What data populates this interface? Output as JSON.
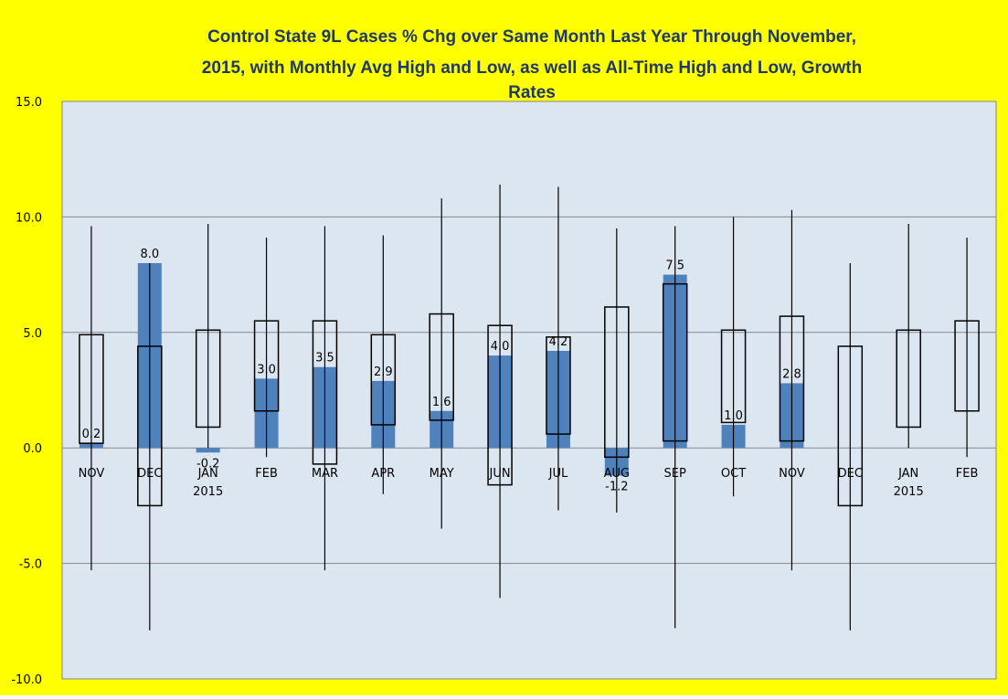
{
  "colors": {
    "outer_background": "#ffff00",
    "plot_background": "#dce6f1",
    "bar_fill": "#4f81bd",
    "box_stroke": "#000000",
    "whisker_stroke": "#000000",
    "gridline": "#868686",
    "title": "#1f3864"
  },
  "chart_data": {
    "type": "bar",
    "title_lines": [
      "Control State 9L Cases % Chg over Same Month Last Year Through November,",
      "2015, with Monthly Avg High and Low, as well as All-Time High and Low,  Growth",
      "Rates"
    ],
    "xlabel": "",
    "ylabel": "",
    "ylim": [
      -10,
      15
    ],
    "yticks": [
      "-10.0",
      "-5.0",
      "0.0",
      "5.0",
      "10.0",
      "15.0"
    ],
    "ytick_values": [
      -10,
      -5,
      0,
      5,
      10,
      15
    ],
    "grid": true,
    "legend": "none",
    "categories": [
      "NOV",
      "DEC",
      "JAN",
      "FEB",
      "MAR",
      "APR",
      "MAY",
      "JUN",
      "JUL",
      "AUG",
      "SEP",
      "OCT",
      "NOV",
      "DEC",
      "JAN",
      "FEB"
    ],
    "category_sublabels": [
      "",
      "",
      "2015",
      "",
      "",
      "",
      "",
      "",
      "",
      "",
      "",
      "",
      "",
      "",
      "2015",
      ""
    ],
    "series": [
      {
        "values": [
          0.2,
          8.0,
          -0.2,
          3.0,
          3.5,
          2.9,
          1.6,
          4.0,
          4.2,
          -1.2,
          7.5,
          1.0,
          2.8,
          null,
          null,
          null
        ],
        "data_labels": [
          "0.2",
          "8.0",
          "-0.2",
          "3.0",
          "3.5",
          "2.9",
          "1.6",
          "4.0",
          "4.2",
          "-1.2",
          "7.5",
          "1.0",
          "2.8",
          "",
          "",
          ""
        ]
      },
      {
        "values_avg_high": [
          4.9,
          4.4,
          5.1,
          5.5,
          5.5,
          4.9,
          5.8,
          5.3,
          4.8,
          6.1,
          7.1,
          5.1,
          5.7,
          4.4,
          5.1,
          5.5
        ],
        "values_avg_low": [
          0.2,
          -2.5,
          0.9,
          1.6,
          -0.7,
          1.0,
          1.2,
          -1.6,
          0.6,
          -0.4,
          0.3,
          1.1,
          0.3,
          -2.5,
          0.9,
          1.6
        ]
      },
      {
        "values_all_time_high": [
          9.6,
          8.0,
          9.7,
          9.1,
          9.6,
          9.2,
          10.8,
          11.4,
          11.3,
          9.5,
          9.6,
          10.0,
          10.3,
          8.0,
          9.7,
          9.1
        ],
        "values_all_time_low": [
          -5.3,
          -7.9,
          0.0,
          -0.4,
          -5.3,
          -2.0,
          -3.5,
          -6.5,
          -2.7,
          -2.8,
          -7.8,
          -2.1,
          -5.3,
          -7.9,
          0.0,
          -0.4
        ]
      }
    ]
  }
}
